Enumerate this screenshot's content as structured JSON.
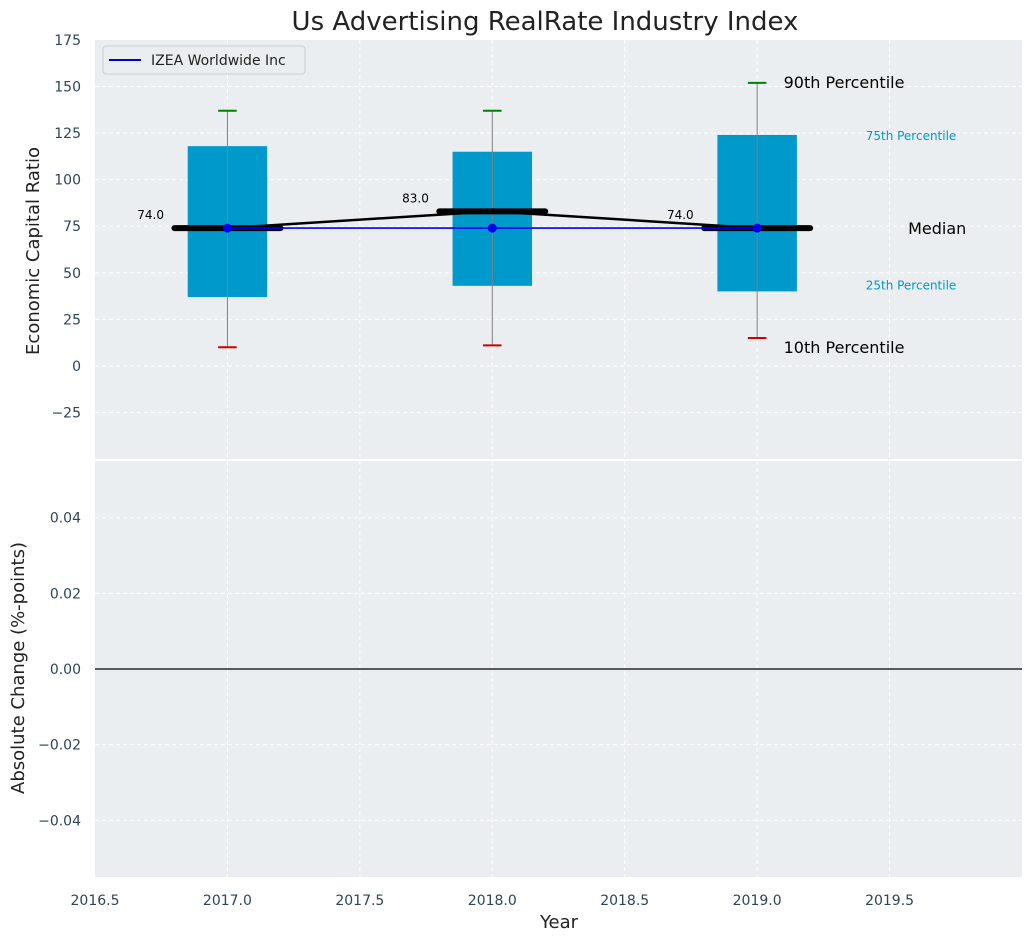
{
  "chart_data": {
    "type": "box",
    "title": "Us Advertising RealRate Industry Index",
    "xlabel": "Year",
    "x_ticks": [
      "2016.5",
      "2017.0",
      "2017.5",
      "2018.0",
      "2018.5",
      "2019.0",
      "2019.5"
    ],
    "x_tick_values": [
      2016.5,
      2017.0,
      2017.5,
      2018.0,
      2018.5,
      2019.0,
      2019.5
    ],
    "xlim": [
      2016.5,
      2020.0
    ],
    "grid": true,
    "legend": {
      "placement": "top-left",
      "entries": [
        {
          "label": "IZEA Worldwide Inc",
          "color": "#0000cc"
        }
      ]
    },
    "colors": {
      "box": "#0099cc",
      "median": "#000000",
      "p90": "#008000",
      "p10": "#d00000",
      "company": "#0000ee",
      "panel_bg": "#eaeef0"
    },
    "top_panel": {
      "ylabel": "Economic Capital Ratio",
      "ylim": [
        -50,
        175
      ],
      "y_ticks": [
        "175",
        "150",
        "125",
        "100",
        "75",
        "50",
        "25",
        "0",
        "−25"
      ],
      "y_tick_values": [
        175,
        150,
        125,
        100,
        75,
        50,
        25,
        0,
        -25
      ],
      "years": [
        2017,
        2018,
        2019
      ],
      "p10": [
        10,
        11,
        15
      ],
      "p25": [
        37,
        43,
        40
      ],
      "median": [
        74,
        83,
        74
      ],
      "p75": [
        118,
        115,
        124
      ],
      "p90": [
        137,
        137,
        152
      ],
      "median_labels": [
        "74.0",
        "83.0",
        "74.0"
      ],
      "company": {
        "name": "IZEA Worldwide Inc",
        "values": [
          74,
          74,
          74
        ]
      },
      "annotations": {
        "p90": "90th Percentile",
        "p75": "75th Percentile",
        "median": "Median",
        "p25": "25th Percentile",
        "p10": "10th Percentile"
      }
    },
    "bottom_panel": {
      "ylabel": "Absolute Change (%-points)",
      "ylim": [
        -0.055,
        0.055
      ],
      "y_ticks": [
        "0.04",
        "0.02",
        "0.00",
        "−0.02",
        "−0.04"
      ],
      "y_tick_values": [
        0.04,
        0.02,
        0.0,
        -0.02,
        -0.04
      ],
      "zero_line": 0
    }
  }
}
